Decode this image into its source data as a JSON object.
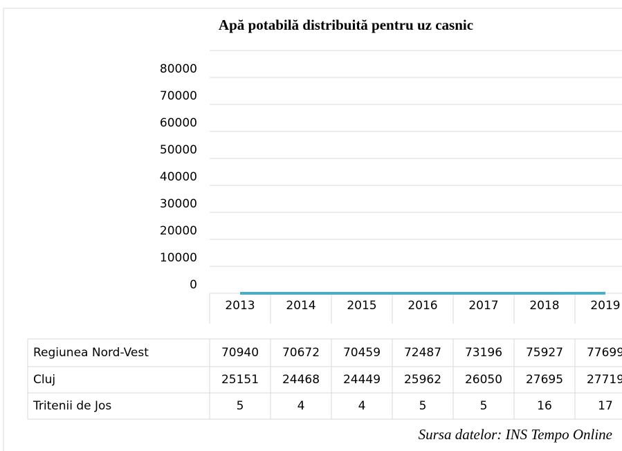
{
  "chart_data": {
    "type": "line",
    "title": "Apă potabilă distribuită pentru uz casnic",
    "categories": [
      "2013",
      "2014",
      "2015",
      "2016",
      "2017",
      "2018",
      "2019"
    ],
    "series": [
      {
        "name": "Regiunea Nord-Vest",
        "values": [
          70940,
          70672,
          70459,
          72487,
          73196,
          75927,
          77699
        ]
      },
      {
        "name": "Cluj",
        "values": [
          25151,
          24468,
          24449,
          25962,
          26050,
          27695,
          27719
        ]
      },
      {
        "name": "Tritenii de Jos",
        "color": "#4bacc6",
        "values": [
          5,
          4,
          4,
          5,
          5,
          16,
          17
        ]
      }
    ],
    "ylim": [
      0,
      90000
    ],
    "yticks": [
      0,
      10000,
      20000,
      30000,
      40000,
      50000,
      60000,
      70000,
      80000
    ],
    "grid": true,
    "data_table": true,
    "source": "Sursa datelor: INS Tempo Online"
  }
}
